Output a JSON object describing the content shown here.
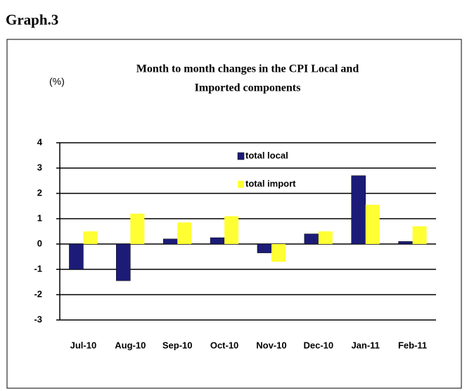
{
  "heading": "Graph.3",
  "chart_data": {
    "type": "bar",
    "title": [
      "Month to month changes in the CPI Local and",
      "Imported components"
    ],
    "y_label": "(%)",
    "categories": [
      "Jul-10",
      "Aug-10",
      "Sep-10",
      "Oct-10",
      "Nov-10",
      "Dec-10",
      "Jan-11",
      "Feb-11"
    ],
    "series": [
      {
        "name": "total local",
        "color": "#1c1c78",
        "values": [
          -1.0,
          -1.45,
          0.2,
          0.25,
          -0.35,
          0.4,
          2.7,
          0.1
        ]
      },
      {
        "name": "total import",
        "color": "#ffff33",
        "values": [
          0.5,
          1.2,
          0.85,
          1.1,
          -0.7,
          0.5,
          1.55,
          0.7
        ]
      }
    ],
    "ylim": [
      -3,
      4
    ],
    "yticks": [
      -3,
      -2,
      -1,
      0,
      1,
      2,
      3,
      4
    ],
    "grid": true
  }
}
